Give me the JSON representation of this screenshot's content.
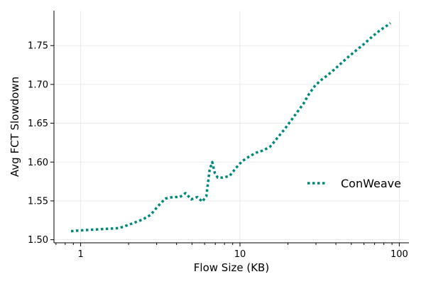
{
  "chart_data": {
    "type": "line",
    "xlabel": "Flow Size (KB)",
    "ylabel": "Avg FCT Slowdown",
    "xscale": "log",
    "xlim": [
      0.68,
      115
    ],
    "ylim": [
      1.496,
      1.795
    ],
    "xticks": [
      1,
      10,
      100
    ],
    "xtick_labels": [
      "1",
      "10",
      "100"
    ],
    "yticks": [
      1.5,
      1.55,
      1.6,
      1.65,
      1.7,
      1.75
    ],
    "ytick_labels": [
      "1.50",
      "1.55",
      "1.60",
      "1.65",
      "1.70",
      "1.75"
    ],
    "grid": true,
    "legend_position": "center-right",
    "series": [
      {
        "name": "ConWeave",
        "color": "#00897b",
        "line_style": "dotted",
        "x": [
          0.87,
          1.0,
          1.2,
          1.45,
          1.75,
          2.05,
          2.45,
          2.75,
          3.05,
          3.4,
          3.8,
          4.2,
          4.55,
          4.95,
          5.4,
          5.8,
          6.15,
          6.45,
          6.7,
          6.95,
          7.25,
          7.8,
          8.6,
          9.4,
          10.3,
          11.4,
          12.6,
          14.0,
          15.5,
          17.0,
          19.0,
          21.0,
          23.0,
          25.0,
          27.0,
          29.5,
          32.0,
          35.0,
          38.0,
          42.0,
          47.0,
          53.0,
          60.0,
          68.0,
          76.0,
          84.0,
          88.0
        ],
        "y": [
          1.511,
          1.512,
          1.513,
          1.514,
          1.515,
          1.52,
          1.526,
          1.532,
          1.543,
          1.553,
          1.555,
          1.555,
          1.56,
          1.552,
          1.555,
          1.549,
          1.556,
          1.59,
          1.6,
          1.586,
          1.58,
          1.58,
          1.582,
          1.592,
          1.601,
          1.607,
          1.612,
          1.615,
          1.62,
          1.63,
          1.642,
          1.654,
          1.665,
          1.675,
          1.687,
          1.698,
          1.705,
          1.711,
          1.717,
          1.725,
          1.734,
          1.743,
          1.752,
          1.762,
          1.77,
          1.776,
          1.779
        ]
      }
    ]
  }
}
